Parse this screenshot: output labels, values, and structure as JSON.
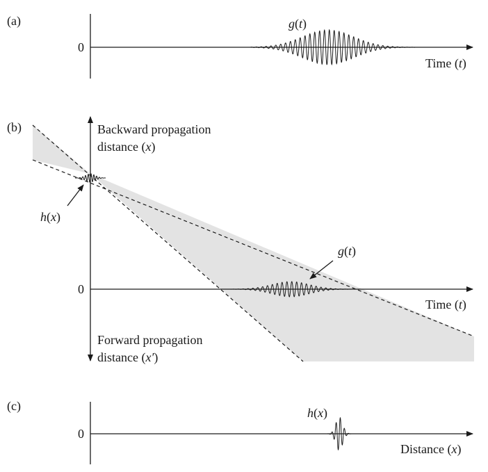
{
  "panels": {
    "a": {
      "tag": "(a)",
      "zero": "0",
      "signal": {
        "fn": "g",
        "arg": "t"
      },
      "axis": {
        "prefix": "Time (",
        "var": "t",
        "suffix": ")"
      }
    },
    "b": {
      "tag": "(b)",
      "zero": "0",
      "up_line1": "Backward propagation",
      "up_line2": {
        "prefix": "distance (",
        "var": "x",
        "suffix": ")"
      },
      "down_line1": "Forward propagation",
      "down_line2": {
        "prefix": "distance (",
        "var": "x′",
        "suffix": ")"
      },
      "h_label": {
        "fn": "h",
        "arg": "x"
      },
      "g_label": {
        "fn": "g",
        "arg": "t"
      },
      "axis": {
        "prefix": "Time (",
        "var": "t",
        "suffix": ")"
      }
    },
    "c": {
      "tag": "(c)",
      "zero": "0",
      "signal": {
        "fn": "h",
        "arg": "x"
      },
      "axis": {
        "prefix": "Distance (",
        "var": "x",
        "suffix": ")"
      }
    }
  },
  "colors": {
    "ink": "#1a1a1a",
    "shade": "#e3e3e3"
  }
}
